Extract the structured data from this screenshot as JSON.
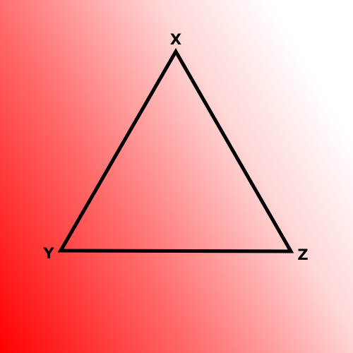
{
  "diagram": {
    "shape": "triangle",
    "stroke_color": "#000000",
    "background": {
      "gradient_from": "#ff0000",
      "gradient_to": "#ffffff"
    },
    "vertices": {
      "top": {
        "label": "X"
      },
      "bottom_left": {
        "label": "Y"
      },
      "bottom_right": {
        "label": "Z"
      }
    }
  }
}
